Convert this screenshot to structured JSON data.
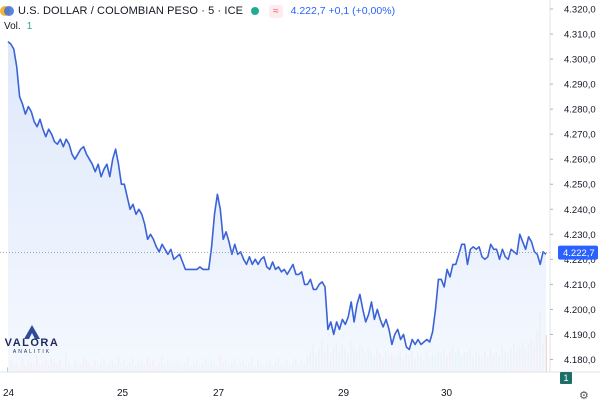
{
  "header": {
    "title": "U.S. DOLLAR / COLOMBIAN PESO · 5 · ICE",
    "pill": "≈",
    "quote": "4.222,7  +0,1 (+0,00%)"
  },
  "volume": {
    "label": "Vol.",
    "value": "1"
  },
  "logo": {
    "brand": "VALORA",
    "sub": "ANALITIK"
  },
  "badge": "1",
  "colors": {
    "line": "#3a63d8",
    "area_top": "#dbe6fb",
    "area_bottom": "#f3f7fe",
    "vol_up": "#a7d8cf",
    "vol_down": "#f3b6b3",
    "price_label_bg": "#2962ff"
  },
  "chart_data": {
    "type": "area",
    "title": "U.S. DOLLAR / COLOMBIAN PESO · 5 · ICE",
    "x_ticks": [
      "24",
      "25",
      "27",
      "29",
      "30"
    ],
    "y_ticks": [
      "4.320,0",
      "4.310,0",
      "4.300,0",
      "4.290,0",
      "4.280,0",
      "4.270,0",
      "4.260,0",
      "4.250,0",
      "4.240,0",
      "4.230,0",
      "4.220,0",
      "4.210,0",
      "4.200,0",
      "4.190,0",
      "4.180,0"
    ],
    "ylim": [
      4175,
      4322
    ],
    "last_price": 4222.7,
    "last_price_label": "4.222,7",
    "series": [
      {
        "name": "USD/COP",
        "values": [
          4307,
          4306,
          4304,
          4297,
          4285,
          4282,
          4278,
          4281,
          4279,
          4275,
          4273,
          4276,
          4272,
          4269,
          4272,
          4270,
          4267,
          4266,
          4268,
          4265,
          4268,
          4266,
          4262,
          4260,
          4262,
          4264,
          4265,
          4262,
          4260,
          4258,
          4255,
          4258,
          4253,
          4256,
          4258,
          4253,
          4260,
          4264,
          4258,
          4250,
          4250,
          4245,
          4240,
          4242,
          4238,
          4240,
          4238,
          4234,
          4228,
          4230,
          4228,
          4225,
          4223,
          4226,
          4224,
          4222,
          4224,
          4220,
          4221,
          4222,
          4219,
          4216,
          4216,
          4216,
          4216,
          4216,
          4217,
          4216,
          4216,
          4216,
          4225,
          4238,
          4246,
          4240,
          4228,
          4231,
          4227,
          4222,
          4226,
          4222,
          4223,
          4220,
          4218,
          4221,
          4218,
          4220,
          4218,
          4220,
          4221,
          4217,
          4216,
          4219,
          4216,
          4217,
          4215,
          4216,
          4214,
          4216,
          4218,
          4214,
          4214,
          4215,
          4210,
          4210,
          4212,
          4208,
          4208,
          4210,
          4211,
          4209,
          4192,
          4195,
          4190,
          4195,
          4192,
          4196,
          4194,
          4197,
          4203,
          4195,
          4202,
          4206,
          4200,
          4195,
          4198,
          4203,
          4196,
          4200,
          4196,
          4193,
          4196,
          4192,
          4186,
          4190,
          4192,
          4188,
          4190,
          4185,
          4184,
          4188,
          4186,
          4188,
          4186,
          4187,
          4188,
          4187,
          4191,
          4200,
          4212,
          4212,
          4209,
          4216,
          4213,
          4218,
          4218,
          4222,
          4226,
          4226,
          4218,
          4224,
          4225,
          4224,
          4225,
          4221,
          4220,
          4221,
          4226,
          4224,
          4224,
          4220,
          4224,
          4221,
          4220,
          4224,
          4223,
          4222,
          4230,
          4227,
          4224,
          4229,
          4227,
          4223,
          4222,
          4218,
          4223,
          4222
        ]
      }
    ],
    "volume": [
      2,
      5,
      3,
      4,
      2,
      6,
      3,
      5,
      4,
      3,
      7,
      3,
      4,
      5,
      3,
      6,
      4,
      3,
      5,
      2,
      8,
      4,
      3,
      5,
      4,
      3,
      6,
      5,
      4,
      3,
      5,
      3,
      4,
      6,
      3,
      4,
      5,
      3,
      7,
      4,
      5,
      3,
      4,
      6,
      3,
      5,
      4,
      3,
      6,
      4,
      5,
      3,
      4,
      7,
      3,
      5,
      4,
      3,
      5,
      4,
      3,
      4,
      6,
      3,
      4,
      5,
      3,
      4,
      6,
      3,
      5,
      4,
      3,
      7,
      4,
      5,
      3,
      4,
      6,
      3,
      4,
      5,
      3,
      4,
      6,
      3,
      5,
      4,
      3,
      4,
      5,
      3,
      4,
      6,
      3,
      4,
      5,
      3,
      4,
      6,
      3,
      5,
      4,
      7,
      9,
      12,
      8,
      10,
      14,
      9,
      12,
      8,
      11,
      13,
      9,
      12,
      10,
      8,
      13,
      11,
      9,
      12,
      10,
      8,
      11,
      9,
      7,
      10,
      8,
      6,
      9,
      7,
      8,
      6,
      7,
      9,
      6,
      8,
      7,
      9,
      6,
      8,
      7,
      5,
      9,
      6,
      8,
      7,
      9,
      8,
      10,
      7,
      9,
      11,
      8,
      10,
      7,
      9,
      8,
      10,
      7,
      9,
      8,
      6,
      9,
      7,
      10,
      8,
      9,
      7,
      11,
      9,
      8,
      10,
      12,
      9,
      11,
      13,
      10,
      12,
      14,
      11,
      18,
      26,
      12,
      16
    ]
  }
}
